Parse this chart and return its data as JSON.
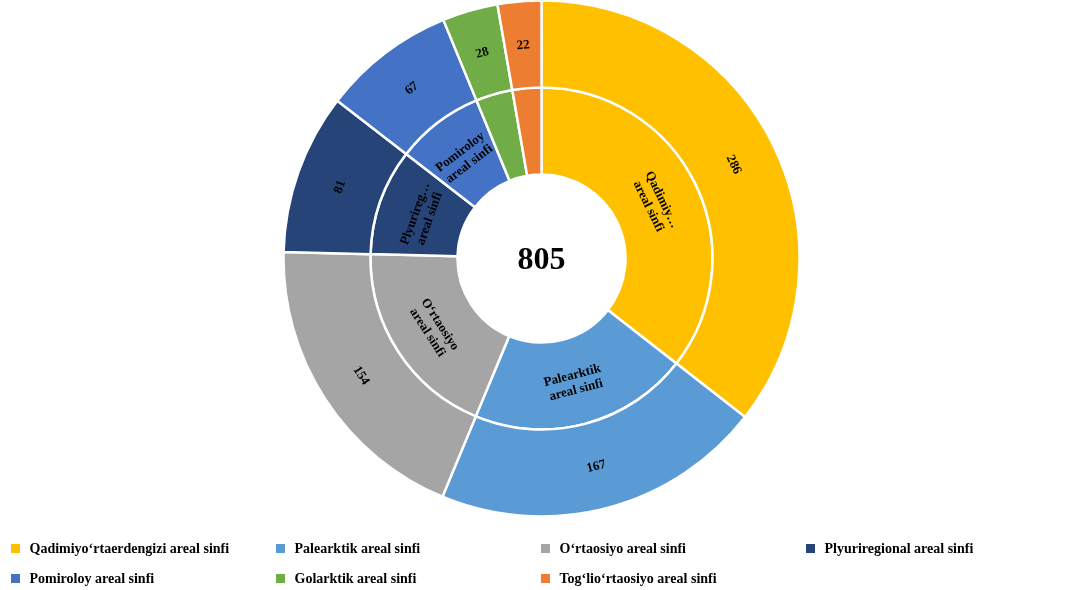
{
  "chart_data": {
    "type": "donut",
    "categories": [
      "Qadimiyo‘rtaerdengizi areal sinfi",
      "Palearktik areal sinfi",
      "O‘rtaosiyo areal sinfi",
      "Plyuriregional areal sinfi",
      "Pomiroloy areal sinfi",
      "Golarktik areal sinfi",
      "Tog‘lio‘rtaosiyo areal sinfi"
    ],
    "colors": [
      "#ffc000",
      "#5b9bd5",
      "#a5a5a5",
      "#264478",
      "#4472c4",
      "#70ad47",
      "#ed7d31"
    ],
    "series": [
      {
        "values": [
          35.53,
          20.75,
          19.13,
          10.06,
          8.32,
          3.48,
          2.73
        ],
        "value_labels": [
          "Qadimiy…\nareal sinfi",
          "Palearktik\nareal sinfi",
          "O‘rtaosiyo\nareal sinfi",
          "Plyurireg…\nareal sinfi",
          "Pomiroloy\nareal sinfi",
          null,
          null
        ]
      },
      {
        "values": [
          286,
          167,
          154,
          81,
          67,
          28,
          22
        ]
      }
    ],
    "data_labels": true,
    "annotations": [
      "805"
    ],
    "legend": "bottom"
  }
}
